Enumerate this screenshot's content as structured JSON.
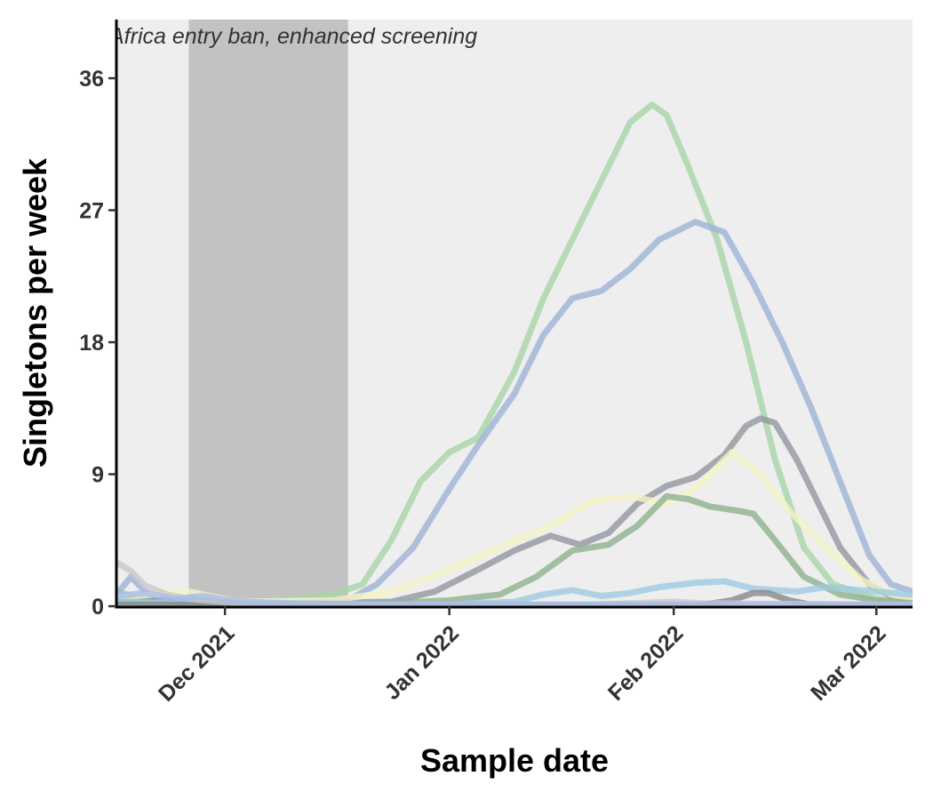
{
  "chart_data": {
    "type": "line",
    "title": "",
    "xlabel": "Sample date",
    "ylabel": "Singletons per week",
    "x_ticks": [
      "2021-12-01",
      "2022-01-01",
      "2022-02-01",
      "2022-03-01"
    ],
    "x_tick_labels": [
      "Dec 2021",
      "Jan 2022",
      "Feb 2022",
      "Mar 2022"
    ],
    "y_ticks": [
      0,
      9,
      18,
      27,
      36
    ],
    "y_tick_labels": [
      "0",
      "9",
      "18",
      "27",
      "36"
    ],
    "xlim": [
      "2021-11-16",
      "2022-03-06"
    ],
    "ylim": [
      0,
      40
    ],
    "grid": false,
    "legend": "none",
    "panel_background": "#eeeeee",
    "shaded_region": {
      "start": "2021-11-26",
      "end": "2021-12-18",
      "color": "#c2c2c2",
      "label": "Africa entry ban, enhanced screening"
    },
    "series": [
      {
        "color": "#a8d5a8",
        "values": [
          [
            "2021-11-16",
            1.0
          ],
          [
            "2021-11-20",
            0.5
          ],
          [
            "2021-11-26",
            0.3
          ],
          [
            "2021-12-03",
            0.2
          ],
          [
            "2021-12-10",
            0.5
          ],
          [
            "2021-12-16",
            0.8
          ],
          [
            "2021-12-20",
            1.5
          ],
          [
            "2021-12-24",
            4.5
          ],
          [
            "2021-12-28",
            8.5
          ],
          [
            "2022-01-01",
            10.5
          ],
          [
            "2022-01-05",
            11.5
          ],
          [
            "2022-01-10",
            16.0
          ],
          [
            "2022-01-14",
            21.0
          ],
          [
            "2022-01-18",
            25.0
          ],
          [
            "2022-01-22",
            29.0
          ],
          [
            "2022-01-26",
            33.0
          ],
          [
            "2022-01-29",
            34.2
          ],
          [
            "2022-01-31",
            33.5
          ],
          [
            "2022-02-03",
            30.0
          ],
          [
            "2022-02-07",
            25.0
          ],
          [
            "2022-02-11",
            18.0
          ],
          [
            "2022-02-15",
            10.0
          ],
          [
            "2022-02-19",
            4.0
          ],
          [
            "2022-02-23",
            1.5
          ],
          [
            "2022-03-01",
            0.5
          ],
          [
            "2022-03-06",
            0.3
          ]
        ]
      },
      {
        "color": "#9db3d6",
        "values": [
          [
            "2021-11-16",
            0.8
          ],
          [
            "2021-11-18",
            2.0
          ],
          [
            "2021-11-21",
            0.5
          ],
          [
            "2021-11-26",
            0.4
          ],
          [
            "2021-12-03",
            0.2
          ],
          [
            "2021-12-10",
            0.2
          ],
          [
            "2021-12-18",
            0.4
          ],
          [
            "2021-12-22",
            1.5
          ],
          [
            "2021-12-27",
            4.0
          ],
          [
            "2022-01-01",
            8.0
          ],
          [
            "2022-01-05",
            11.0
          ],
          [
            "2022-01-10",
            14.5
          ],
          [
            "2022-01-14",
            18.5
          ],
          [
            "2022-01-18",
            21.0
          ],
          [
            "2022-01-22",
            21.5
          ],
          [
            "2022-01-26",
            23.0
          ],
          [
            "2022-01-30",
            25.0
          ],
          [
            "2022-02-04",
            26.2
          ],
          [
            "2022-02-08",
            25.5
          ],
          [
            "2022-02-12",
            22.0
          ],
          [
            "2022-02-16",
            18.0
          ],
          [
            "2022-02-20",
            13.5
          ],
          [
            "2022-02-24",
            8.5
          ],
          [
            "2022-02-28",
            3.5
          ],
          [
            "2022-03-03",
            1.5
          ],
          [
            "2022-03-06",
            1.0
          ]
        ]
      },
      {
        "color": "#93969f",
        "values": [
          [
            "2021-11-16",
            0.5
          ],
          [
            "2021-11-26",
            0.4
          ],
          [
            "2021-12-10",
            0.2
          ],
          [
            "2021-12-24",
            0.3
          ],
          [
            "2021-12-30",
            1.0
          ],
          [
            "2022-01-05",
            2.5
          ],
          [
            "2022-01-10",
            3.8
          ],
          [
            "2022-01-15",
            4.8
          ],
          [
            "2022-01-19",
            4.2
          ],
          [
            "2022-01-23",
            5.0
          ],
          [
            "2022-01-27",
            7.0
          ],
          [
            "2022-01-31",
            8.2
          ],
          [
            "2022-02-04",
            8.8
          ],
          [
            "2022-02-08",
            10.3
          ],
          [
            "2022-02-11",
            12.3
          ],
          [
            "2022-02-13",
            12.8
          ],
          [
            "2022-02-15",
            12.5
          ],
          [
            "2022-02-18",
            10.0
          ],
          [
            "2022-02-21",
            7.0
          ],
          [
            "2022-02-24",
            4.0
          ],
          [
            "2022-02-28",
            1.5
          ],
          [
            "2022-03-03",
            0.7
          ],
          [
            "2022-03-06",
            0.5
          ]
        ]
      },
      {
        "color": "#f4f4c4",
        "values": [
          [
            "2021-11-16",
            0.6
          ],
          [
            "2021-11-26",
            1.0
          ],
          [
            "2021-12-03",
            0.3
          ],
          [
            "2021-12-16",
            0.4
          ],
          [
            "2021-12-24",
            1.0
          ],
          [
            "2022-01-01",
            2.5
          ],
          [
            "2022-01-08",
            4.0
          ],
          [
            "2022-01-15",
            5.5
          ],
          [
            "2022-01-21",
            7.2
          ],
          [
            "2022-01-26",
            7.5
          ],
          [
            "2022-01-31",
            7.0
          ],
          [
            "2022-02-04",
            8.0
          ],
          [
            "2022-02-09",
            10.5
          ],
          [
            "2022-02-13",
            9.0
          ],
          [
            "2022-02-17",
            6.5
          ],
          [
            "2022-02-22",
            4.0
          ],
          [
            "2022-02-27",
            1.8
          ],
          [
            "2022-03-03",
            0.8
          ],
          [
            "2022-03-06",
            0.5
          ]
        ]
      },
      {
        "color": "#8eb28e",
        "values": [
          [
            "2021-11-16",
            0.3
          ],
          [
            "2021-11-26",
            0.2
          ],
          [
            "2021-12-10",
            0.1
          ],
          [
            "2021-12-24",
            0.2
          ],
          [
            "2022-01-01",
            0.4
          ],
          [
            "2022-01-08",
            0.8
          ],
          [
            "2022-01-13",
            2.0
          ],
          [
            "2022-01-18",
            3.8
          ],
          [
            "2022-01-23",
            4.2
          ],
          [
            "2022-01-27",
            5.5
          ],
          [
            "2022-01-31",
            7.5
          ],
          [
            "2022-02-03",
            7.3
          ],
          [
            "2022-02-06",
            6.8
          ],
          [
            "2022-02-10",
            6.5
          ],
          [
            "2022-02-12",
            6.3
          ],
          [
            "2022-02-15",
            4.5
          ],
          [
            "2022-02-19",
            2.0
          ],
          [
            "2022-02-24",
            0.8
          ],
          [
            "2022-03-01",
            0.4
          ],
          [
            "2022-03-06",
            0.2
          ]
        ]
      },
      {
        "color": "#9ecae1",
        "values": [
          [
            "2021-11-16",
            0.3
          ],
          [
            "2021-11-26",
            0.2
          ],
          [
            "2021-12-10",
            0.1
          ],
          [
            "2021-12-30",
            0.1
          ],
          [
            "2022-01-10",
            0.3
          ],
          [
            "2022-01-14",
            0.8
          ],
          [
            "2022-01-18",
            1.1
          ],
          [
            "2022-01-22",
            0.7
          ],
          [
            "2022-01-26",
            0.9
          ],
          [
            "2022-01-30",
            1.3
          ],
          [
            "2022-02-04",
            1.6
          ],
          [
            "2022-02-08",
            1.7
          ],
          [
            "2022-02-12",
            1.2
          ],
          [
            "2022-02-18",
            1.0
          ],
          [
            "2022-02-22",
            1.3
          ],
          [
            "2022-03-01",
            1.0
          ],
          [
            "2022-03-06",
            0.8
          ]
        ]
      },
      {
        "color": "#888888",
        "values": [
          [
            "2021-11-16",
            0.1
          ],
          [
            "2022-02-05",
            0.1
          ],
          [
            "2022-02-09",
            0.4
          ],
          [
            "2022-02-12",
            0.9
          ],
          [
            "2022-02-14",
            0.9
          ],
          [
            "2022-02-17",
            0.4
          ],
          [
            "2022-02-20",
            0.1
          ],
          [
            "2022-03-06",
            0.0
          ]
        ]
      },
      {
        "color": "#c8c8c8",
        "values": [
          [
            "2021-11-16",
            3.0
          ],
          [
            "2021-11-18",
            2.4
          ],
          [
            "2021-11-20",
            1.4
          ],
          [
            "2021-11-23",
            0.8
          ],
          [
            "2021-11-26",
            0.5
          ],
          [
            "2021-12-03",
            0.2
          ],
          [
            "2021-12-10",
            0.1
          ],
          [
            "2022-01-20",
            0.1
          ],
          [
            "2022-02-01",
            0.3
          ],
          [
            "2022-02-05",
            0.2
          ],
          [
            "2022-03-06",
            0.1
          ]
        ]
      },
      {
        "color": "#a7bde8",
        "values": [
          [
            "2021-11-16",
            0.7
          ],
          [
            "2021-11-20",
            0.9
          ],
          [
            "2021-11-24",
            0.5
          ],
          [
            "2021-11-28",
            0.7
          ],
          [
            "2021-12-03",
            0.3
          ],
          [
            "2021-12-10",
            0.2
          ],
          [
            "2022-01-01",
            0.1
          ],
          [
            "2022-03-06",
            0.1
          ]
        ]
      }
    ]
  }
}
